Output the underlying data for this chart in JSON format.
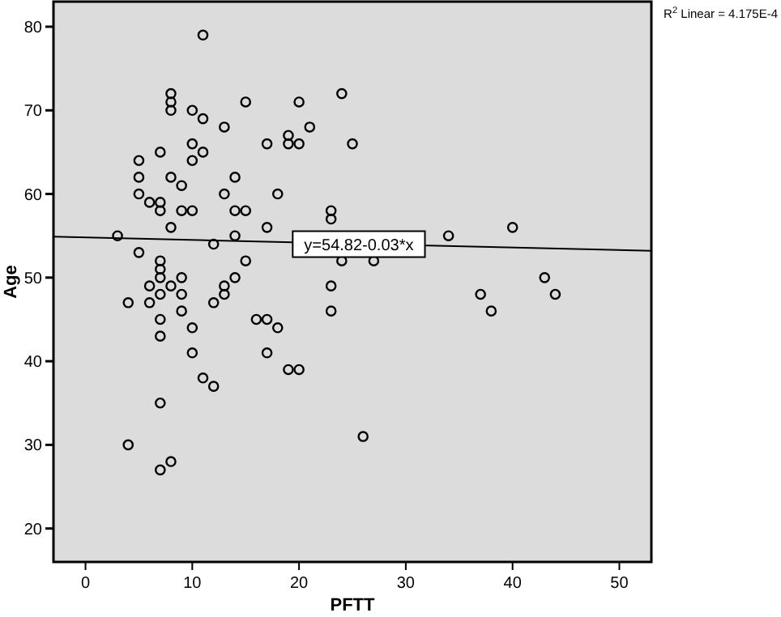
{
  "chart_data": {
    "type": "scatter",
    "xlabel": "PFTT",
    "ylabel": "Age",
    "xlim": [
      -3,
      53
    ],
    "ylim": [
      16,
      83
    ],
    "xticks": [
      0,
      10,
      20,
      30,
      40,
      50
    ],
    "yticks": [
      20,
      30,
      40,
      50,
      60,
      70,
      80
    ],
    "grid": false,
    "marker": "circle",
    "annotations": [
      {
        "text": "y=54.82-0.03*x",
        "x": 25.6,
        "y": 54
      },
      "R$^{2}$ Linear = 4.175E-4"
    ],
    "series": [
      {
        "type": "scatter",
        "color": "#000000",
        "x": [
          11,
          8,
          8,
          8,
          10,
          11,
          15,
          13,
          17,
          19,
          19,
          7,
          10,
          11,
          10,
          5,
          5,
          8,
          14,
          9,
          5,
          13,
          18,
          6,
          7,
          7,
          9,
          10,
          14,
          15,
          8,
          17,
          3,
          14,
          12,
          5,
          15,
          7,
          7,
          7,
          14,
          9,
          6,
          8,
          13,
          13,
          7,
          9,
          4,
          6,
          12,
          7,
          9,
          7,
          10,
          16,
          17,
          18,
          10,
          17,
          19,
          11,
          12,
          7,
          4,
          7,
          8,
          20,
          24,
          21,
          20,
          25,
          23,
          23,
          34,
          40,
          24,
          27,
          23,
          37,
          38,
          23,
          20,
          26,
          43,
          44
        ],
        "values": [
          79,
          72,
          71,
          70,
          70,
          69,
          71,
          68,
          66,
          67,
          66,
          65,
          66,
          65,
          64,
          64,
          62,
          62,
          62,
          61,
          60,
          60,
          60,
          59,
          59,
          58,
          58,
          58,
          58,
          58,
          56,
          56,
          55,
          55,
          54,
          53,
          52,
          52,
          51,
          50,
          50,
          50,
          49,
          49,
          49,
          48,
          48,
          48,
          47,
          47,
          47,
          45,
          46,
          43,
          44,
          45,
          45,
          44,
          41,
          41,
          39,
          38,
          37,
          35,
          30,
          27,
          28,
          71,
          72,
          68,
          66,
          66,
          58,
          57,
          55,
          56,
          52,
          52,
          49,
          48,
          46,
          46,
          39,
          31,
          50,
          48
        ]
      },
      {
        "type": "line",
        "color": "#000000",
        "marker": "none",
        "x": [
          -3,
          53
        ],
        "values": [
          54.9,
          53.2
        ]
      }
    ]
  }
}
